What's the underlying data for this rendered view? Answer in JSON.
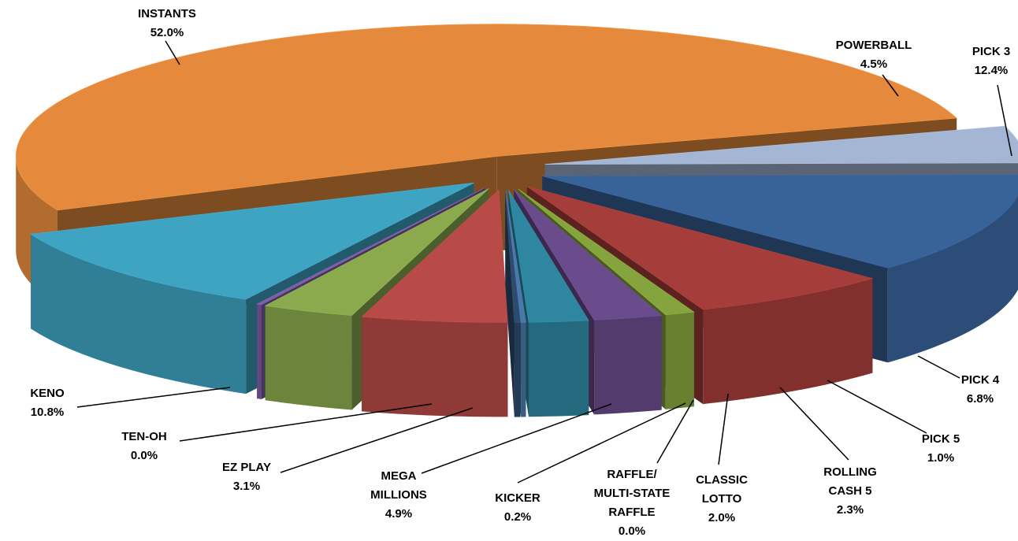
{
  "chart_data": {
    "type": "pie",
    "style": "3d-exploded",
    "slices": [
      {
        "label": "INSTANTS",
        "value": 52.0,
        "value_label": "52.0%",
        "color": "#E58A3C"
      },
      {
        "label": "POWERBALL",
        "value": 4.5,
        "value_label": "4.5%",
        "color": "#A4B6D3"
      },
      {
        "label": "PICK 3",
        "value": 12.4,
        "value_label": "12.4%",
        "color": "#386399"
      },
      {
        "label": "PICK 4",
        "value": 6.8,
        "value_label": "6.8%",
        "color": "#A53E3A"
      },
      {
        "label": "PICK 5",
        "value": 1.0,
        "value_label": "1.0%",
        "color": "#86A43E"
      },
      {
        "label": "ROLLING CASH 5",
        "value": 2.3,
        "value_label": "2.3%",
        "color": "#6A4B8C"
      },
      {
        "label": "CLASSIC LOTTO",
        "value": 2.0,
        "value_label": "2.0%",
        "color": "#2E86A0"
      },
      {
        "label": "RAFFLE/ MULTI-STATE RAFFLE",
        "value": 0.0,
        "value_label": "0.0%",
        "color": "#4A78A8"
      },
      {
        "label": "KICKER",
        "value": 0.2,
        "value_label": "0.2%",
        "color": "#2E4B6E"
      },
      {
        "label": "MEGA MILLIONS",
        "value": 4.9,
        "value_label": "4.9%",
        "color": "#B84A47"
      },
      {
        "label": "EZ PLAY",
        "value": 3.1,
        "value_label": "3.1%",
        "color": "#8BAA4E"
      },
      {
        "label": "TEN-OH",
        "value": 0.0,
        "value_label": "0.0%",
        "color": "#7D5FA6"
      },
      {
        "label": "KENO",
        "value": 10.8,
        "value_label": "10.8%",
        "color": "#3FA3C2"
      }
    ]
  },
  "labels": {
    "instants": {
      "name": "INSTANTS",
      "pct": "52.0%"
    },
    "powerball": {
      "name": "POWERBALL",
      "pct": "4.5%"
    },
    "pick3": {
      "name": "PICK 3",
      "pct": "12.4%"
    },
    "pick4": {
      "name": "PICK 4",
      "pct": "6.8%"
    },
    "pick5": {
      "name": "PICK 5",
      "pct": "1.0%"
    },
    "rolling": {
      "l1": "ROLLING",
      "l2": "CASH 5",
      "pct": "2.3%"
    },
    "classic": {
      "l1": "CLASSIC",
      "l2": "LOTTO",
      "pct": "2.0%"
    },
    "raffle": {
      "l1": "RAFFLE/",
      "l2": "MULTI-STATE",
      "l3": "RAFFLE",
      "pct": "0.0%"
    },
    "kicker": {
      "name": "KICKER",
      "pct": "0.2%"
    },
    "mega": {
      "l1": "MEGA",
      "l2": "MILLIONS",
      "pct": "4.9%"
    },
    "ezplay": {
      "name": "EZ PLAY",
      "pct": "3.1%"
    },
    "tenoh": {
      "name": "TEN-OH",
      "pct": "0.0%"
    },
    "keno": {
      "name": "KENO",
      "pct": "10.8%"
    }
  }
}
